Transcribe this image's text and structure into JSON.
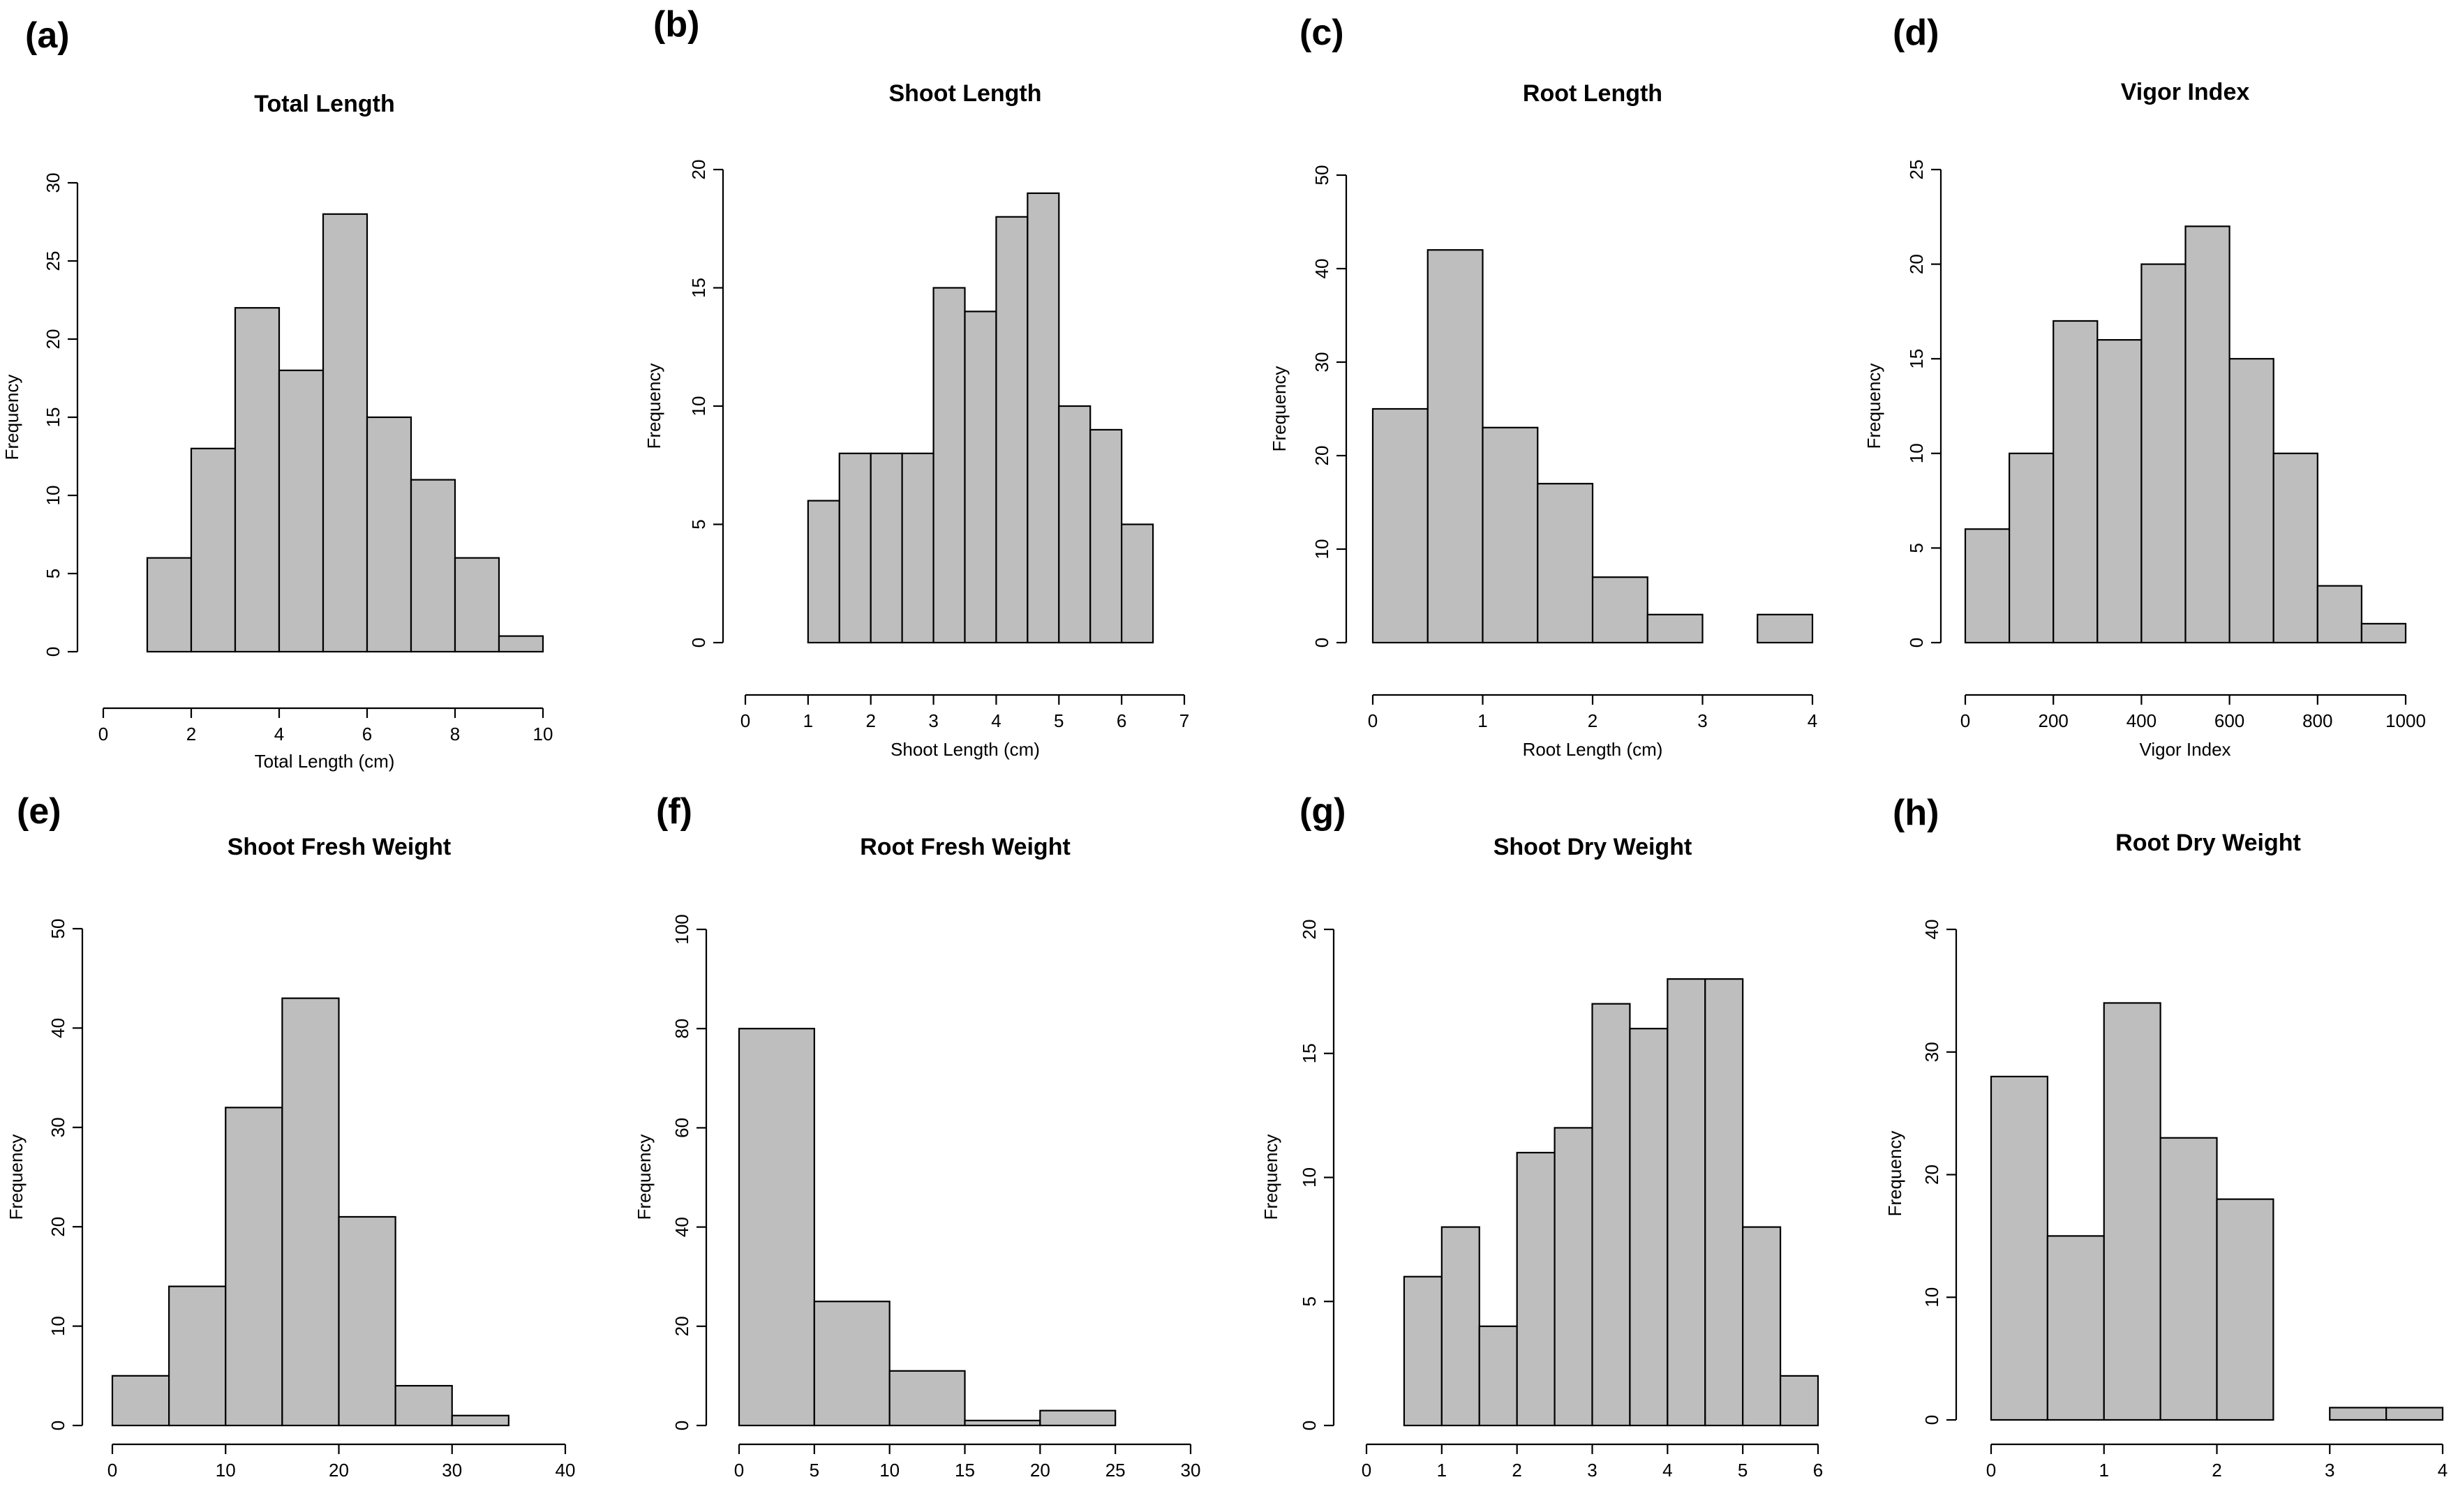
{
  "chart_data": [
    {
      "type": "bar",
      "panel": "(a)",
      "title": "Total Length",
      "xlabel": "Total Length (cm)",
      "ylabel": "Frequency",
      "bins": [
        [
          1,
          2
        ],
        [
          2,
          3
        ],
        [
          3,
          4
        ],
        [
          4,
          5
        ],
        [
          5,
          6
        ],
        [
          6,
          7
        ],
        [
          7,
          8
        ],
        [
          8,
          9
        ],
        [
          9,
          10
        ]
      ],
      "values": [
        6,
        13,
        22,
        18,
        28,
        15,
        11,
        6,
        1
      ],
      "xlim": [
        0,
        10
      ],
      "ylim": [
        0,
        30
      ],
      "xticks": [
        0,
        2,
        4,
        6,
        8,
        10
      ],
      "yticks": [
        0,
        5,
        10,
        15,
        20,
        25,
        30
      ]
    },
    {
      "type": "bar",
      "panel": "(b)",
      "title": "Shoot Length",
      "xlabel": "Shoot Length (cm)",
      "ylabel": "Frequency",
      "bins": [
        [
          1,
          1.5
        ],
        [
          1.5,
          2
        ],
        [
          2,
          2.5
        ],
        [
          2.5,
          3
        ],
        [
          3,
          3.5
        ],
        [
          3.5,
          4
        ],
        [
          4,
          4.5
        ],
        [
          4.5,
          5
        ],
        [
          5,
          5.5
        ],
        [
          5.5,
          6
        ],
        [
          6,
          6.5
        ]
      ],
      "values": [
        6,
        8,
        8,
        8,
        15,
        14,
        18,
        19,
        10,
        9,
        5
      ],
      "xlim": [
        0,
        7
      ],
      "ylim": [
        0,
        20
      ],
      "xticks": [
        0,
        1,
        2,
        3,
        4,
        5,
        6,
        7
      ],
      "yticks": [
        0,
        5,
        10,
        15,
        20
      ]
    },
    {
      "type": "bar",
      "panel": "(c)",
      "title": "Root Length",
      "xlabel": "Root Length (cm)",
      "ylabel": "Frequency",
      "bins": [
        [
          0,
          0.5
        ],
        [
          0.5,
          1
        ],
        [
          1,
          1.5
        ],
        [
          1.5,
          2
        ],
        [
          2,
          2.5
        ],
        [
          2.5,
          3
        ],
        [
          3,
          3.5
        ],
        [
          3.5,
          4
        ]
      ],
      "values": [
        25,
        42,
        23,
        17,
        7,
        3,
        0,
        3
      ],
      "xlim": [
        0,
        4
      ],
      "ylim": [
        0,
        50
      ],
      "xticks": [
        0,
        1,
        2,
        3,
        4
      ],
      "yticks": [
        0,
        10,
        20,
        30,
        40,
        50
      ]
    },
    {
      "type": "bar",
      "panel": "(d)",
      "title": "Vigor Index",
      "xlabel": "Vigor Index",
      "ylabel": "Frequency",
      "bins": [
        [
          0,
          100
        ],
        [
          100,
          200
        ],
        [
          200,
          300
        ],
        [
          300,
          400
        ],
        [
          400,
          500
        ],
        [
          500,
          600
        ],
        [
          600,
          700
        ],
        [
          700,
          800
        ],
        [
          800,
          900
        ],
        [
          900,
          1000
        ]
      ],
      "values": [
        6,
        10,
        17,
        16,
        20,
        22,
        15,
        10,
        3,
        1
      ],
      "xlim": [
        0,
        1000
      ],
      "ylim": [
        0,
        25
      ],
      "xticks": [
        0,
        200,
        400,
        600,
        800,
        1000
      ],
      "yticks": [
        0,
        5,
        10,
        15,
        20,
        25
      ]
    },
    {
      "type": "bar",
      "panel": "(e)",
      "title": "Shoot Fresh Weight",
      "xlabel": "",
      "ylabel": "Frequency",
      "bins": [
        [
          0,
          5
        ],
        [
          5,
          10
        ],
        [
          10,
          15
        ],
        [
          15,
          20
        ],
        [
          20,
          25
        ],
        [
          25,
          30
        ],
        [
          30,
          35
        ]
      ],
      "values": [
        5,
        14,
        32,
        43,
        21,
        4,
        1
      ],
      "xlim": [
        0,
        40
      ],
      "ylim": [
        0,
        50
      ],
      "xticks": [
        0,
        10,
        20,
        30,
        40
      ],
      "yticks": [
        0,
        10,
        20,
        30,
        40,
        50
      ]
    },
    {
      "type": "bar",
      "panel": "(f)",
      "title": "Root Fresh Weight",
      "xlabel": "",
      "ylabel": "Frequency",
      "bins": [
        [
          0,
          5
        ],
        [
          5,
          10
        ],
        [
          10,
          15
        ],
        [
          15,
          20
        ],
        [
          20,
          25
        ]
      ],
      "values": [
        80,
        25,
        11,
        1,
        3
      ],
      "xlim": [
        0,
        30
      ],
      "ylim": [
        0,
        100
      ],
      "xticks": [
        0,
        5,
        10,
        15,
        20,
        25,
        30
      ],
      "yticks": [
        0,
        20,
        40,
        60,
        80,
        100
      ]
    },
    {
      "type": "bar",
      "panel": "(g)",
      "title": "Shoot Dry Weight",
      "xlabel": "",
      "ylabel": "Frequency",
      "bins": [
        [
          0.5,
          1
        ],
        [
          1,
          1.5
        ],
        [
          1.5,
          2
        ],
        [
          2,
          2.5
        ],
        [
          2.5,
          3
        ],
        [
          3,
          3.5
        ],
        [
          3.5,
          4
        ],
        [
          4,
          4.5
        ],
        [
          4.5,
          5
        ],
        [
          5,
          5.5
        ],
        [
          5.5,
          6
        ]
      ],
      "values": [
        6,
        8,
        4,
        11,
        12,
        17,
        16,
        18,
        18,
        8,
        2
      ],
      "xlim": [
        0,
        6
      ],
      "ylim": [
        0,
        20
      ],
      "xticks": [
        0,
        1,
        2,
        3,
        4,
        5,
        6
      ],
      "yticks": [
        0,
        5,
        10,
        15,
        20
      ]
    },
    {
      "type": "bar",
      "panel": "(h)",
      "title": "Root Dry Weight",
      "xlabel": "",
      "ylabel": "Frequency",
      "bins": [
        [
          0,
          0.5
        ],
        [
          0.5,
          1
        ],
        [
          1,
          1.5
        ],
        [
          1.5,
          2
        ],
        [
          2,
          2.5
        ],
        [
          2.5,
          3
        ],
        [
          3,
          3.5
        ],
        [
          3.5,
          4
        ]
      ],
      "values": [
        28,
        15,
        34,
        23,
        18,
        0,
        1,
        1
      ],
      "xlim": [
        0,
        4
      ],
      "ylim": [
        0,
        40
      ],
      "xticks": [
        0,
        1,
        2,
        3,
        4
      ],
      "yticks": [
        0,
        10,
        20,
        30,
        40
      ]
    }
  ]
}
